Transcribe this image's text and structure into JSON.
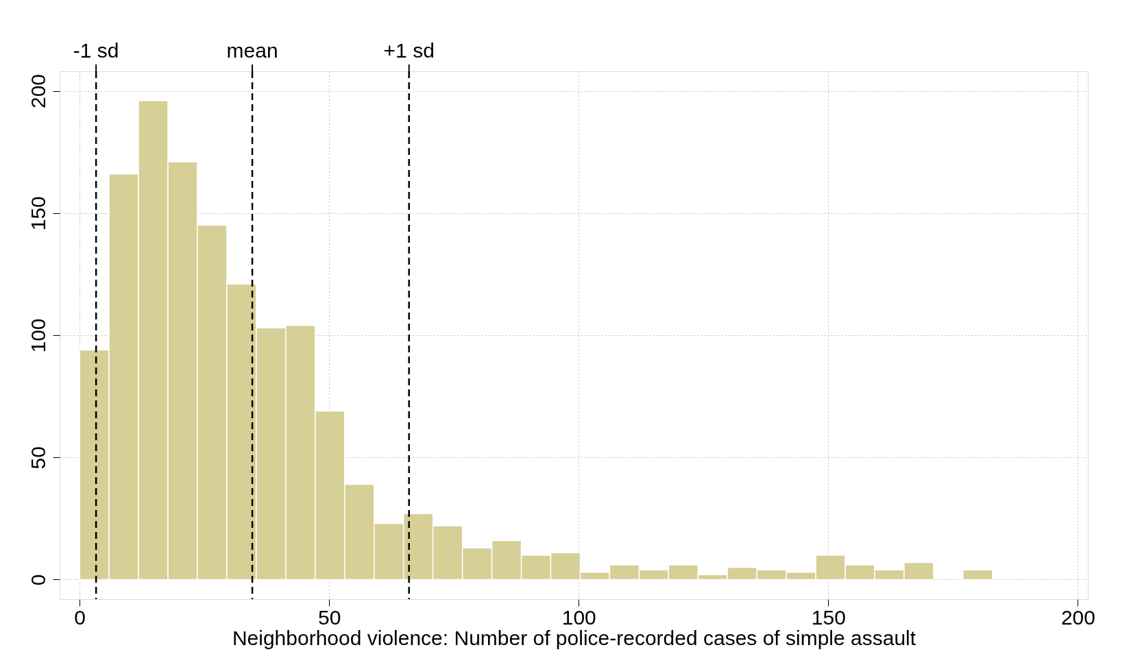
{
  "chart_data": {
    "type": "histogram",
    "xlabel": "Neighborhood violence: Number of police-recorded cases of simple assault",
    "bins": [
      0,
      5.9,
      11.8,
      17.7,
      23.6,
      29.5,
      35.4,
      41.3,
      47.2,
      53.1,
      59,
      64.9,
      70.8,
      76.7,
      82.6,
      88.5,
      94.4,
      100.3,
      106.2,
      112.1,
      118,
      123.9,
      129.8,
      135.7,
      141.6,
      147.5,
      153.4,
      159.3,
      165.2,
      171.1,
      177,
      182.9
    ],
    "values": [
      94,
      166,
      196,
      171,
      145,
      121,
      103,
      104,
      69,
      39,
      23,
      27,
      22,
      13,
      16,
      10,
      11,
      3,
      6,
      4,
      6,
      2,
      5,
      4,
      3,
      10,
      6,
      4,
      7,
      0,
      4
    ],
    "color": "#d6cf96",
    "xlim": [
      -4,
      202
    ],
    "xticks": [
      0,
      50,
      100,
      150,
      200
    ],
    "ylim": [
      -8,
      208
    ],
    "yticks": [
      0,
      50,
      100,
      150,
      200
    ],
    "grid": true,
    "ref_lines": [
      {
        "axis": "x",
        "value": 3.3,
        "label": "-1 sd",
        "color": "#000000",
        "line_style": "dashed"
      },
      {
        "axis": "x",
        "value": 34.6,
        "label": "mean",
        "color": "#000000",
        "line_style": "dashed"
      },
      {
        "axis": "x",
        "value": 66.0,
        "label": "+1 sd",
        "color": "#000000",
        "line_style": "dashed"
      }
    ]
  }
}
